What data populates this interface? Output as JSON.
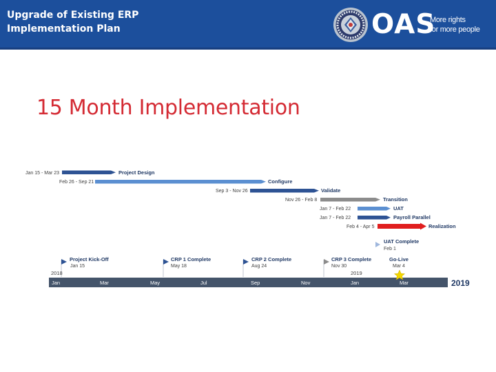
{
  "header": {
    "title_line1": "Upgrade of Existing ERP",
    "title_line2": "Implementation Plan",
    "logo_text": "OAS",
    "slogan_line1": "More rights",
    "slogan_line2": "for more people"
  },
  "slide": {
    "title": "15 Month Implementation"
  },
  "colors": {
    "header_bg": "#1c4f9c",
    "title_red": "#d42a33",
    "timeline_bar": "#44546a",
    "dark_blue": "#2e5394",
    "light_blue": "#5b8fd1",
    "gray": "#8c8c8c",
    "red": "#e01e1e",
    "star": "#f2d600",
    "milestone_blue": "#2e5394"
  },
  "chart_data": {
    "type": "gantt",
    "timeline_months": [
      "Jan",
      "Mar",
      "May",
      "Jul",
      "Sep",
      "Nov",
      "Jan",
      "Mar"
    ],
    "year_labels": [
      "2018",
      "2019"
    ],
    "end_year_label": "2019",
    "tasks": [
      {
        "name": "Project Design",
        "dates": "Jan 15 - Mar 23",
        "color": "dark_blue"
      },
      {
        "name": "Configure",
        "dates": "Feb 26 - Sep 21",
        "color": "light_blue"
      },
      {
        "name": "Validate",
        "dates": "Sep 3 - Nov 26",
        "color": "dark_blue"
      },
      {
        "name": "Transition",
        "dates": "Nov 26 - Feb 8",
        "color": "gray"
      },
      {
        "name": "UAT",
        "dates": "Jan 7 - Feb 22",
        "color": "light_blue"
      },
      {
        "name": "Payroll Parallel",
        "dates": "Jan 7 - Feb 22",
        "color": "dark_blue"
      },
      {
        "name": "Realization",
        "dates": "Feb 4 - Apr 5",
        "color": "red"
      }
    ],
    "milestones": [
      {
        "name": "Project Kick-Off",
        "date": "Jan 15"
      },
      {
        "name": "CRP 1 Complete",
        "date": "May 18"
      },
      {
        "name": "CRP 2 Complete",
        "date": "Aug 24"
      },
      {
        "name": "CRP 3 Complete",
        "date": "Nov 30"
      },
      {
        "name": "Go-Live",
        "date": "Mar 4"
      },
      {
        "name": "UAT Complete",
        "date": "Feb 1"
      }
    ]
  }
}
